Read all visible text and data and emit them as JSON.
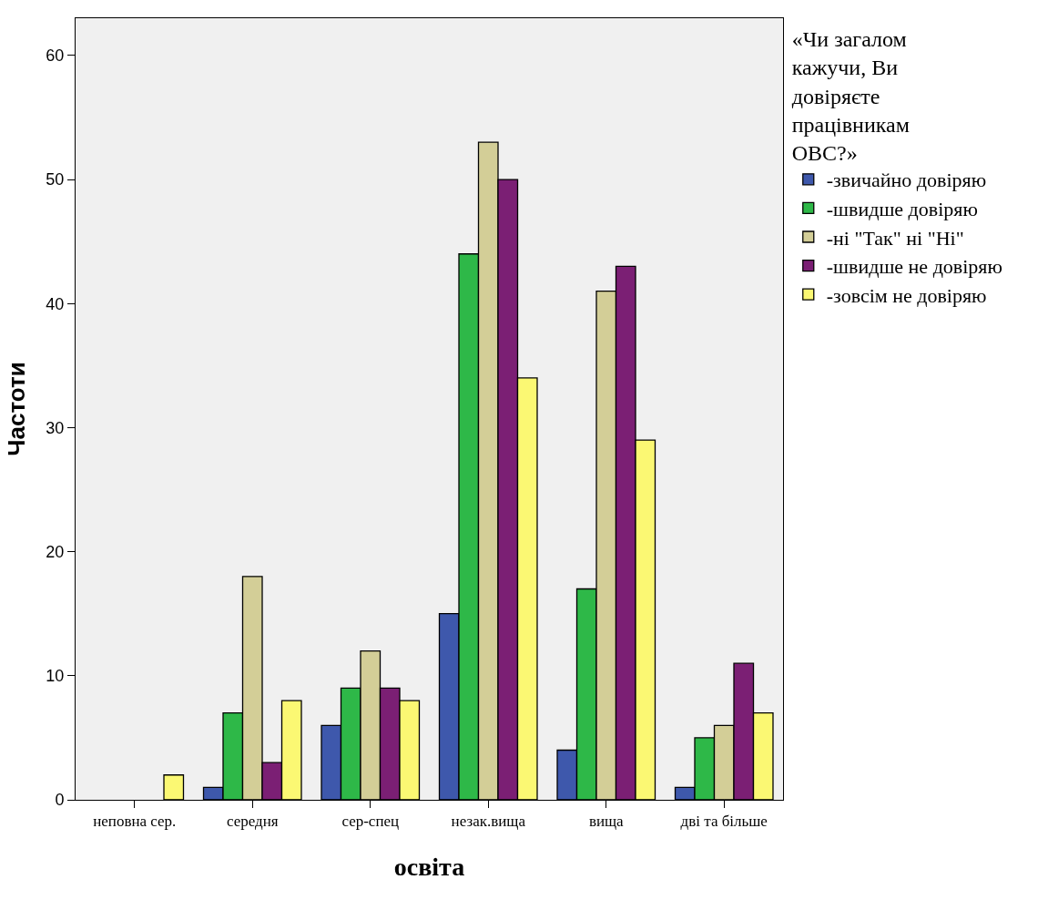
{
  "chart_data": {
    "type": "bar",
    "xlabel": "освіта",
    "ylabel": "Частоти",
    "legend_title": "«Чи загалом кажучи, Ви довіряєте працівникам ОВС?»",
    "categories": [
      "неповна сер.",
      "середня",
      "сер-спец",
      "незак.вища",
      "вища",
      "дві та більше"
    ],
    "series": [
      {
        "name": "-звичайно довіряю",
        "color": "#3e58ac",
        "values": [
          null,
          1,
          6,
          15,
          4,
          1
        ]
      },
      {
        "name": "-швидше довіряю",
        "color": "#2eb848",
        "values": [
          null,
          7,
          9,
          44,
          17,
          5
        ]
      },
      {
        "name": "-ні \"Так\" ні \"Ні\"",
        "color": "#d3ce97",
        "values": [
          null,
          18,
          12,
          53,
          41,
          6
        ]
      },
      {
        "name": "-швидше не довіряю",
        "color": "#7b1f74",
        "values": [
          null,
          3,
          9,
          50,
          43,
          11
        ]
      },
      {
        "name": "-зовсім не довіряю",
        "color": "#fbf873",
        "values": [
          2,
          8,
          8,
          34,
          29,
          7
        ]
      }
    ],
    "ylim": [
      0,
      63
    ],
    "yticks": [
      0,
      10,
      20,
      30,
      40,
      50,
      60
    ],
    "grid": false,
    "legend": "right"
  }
}
